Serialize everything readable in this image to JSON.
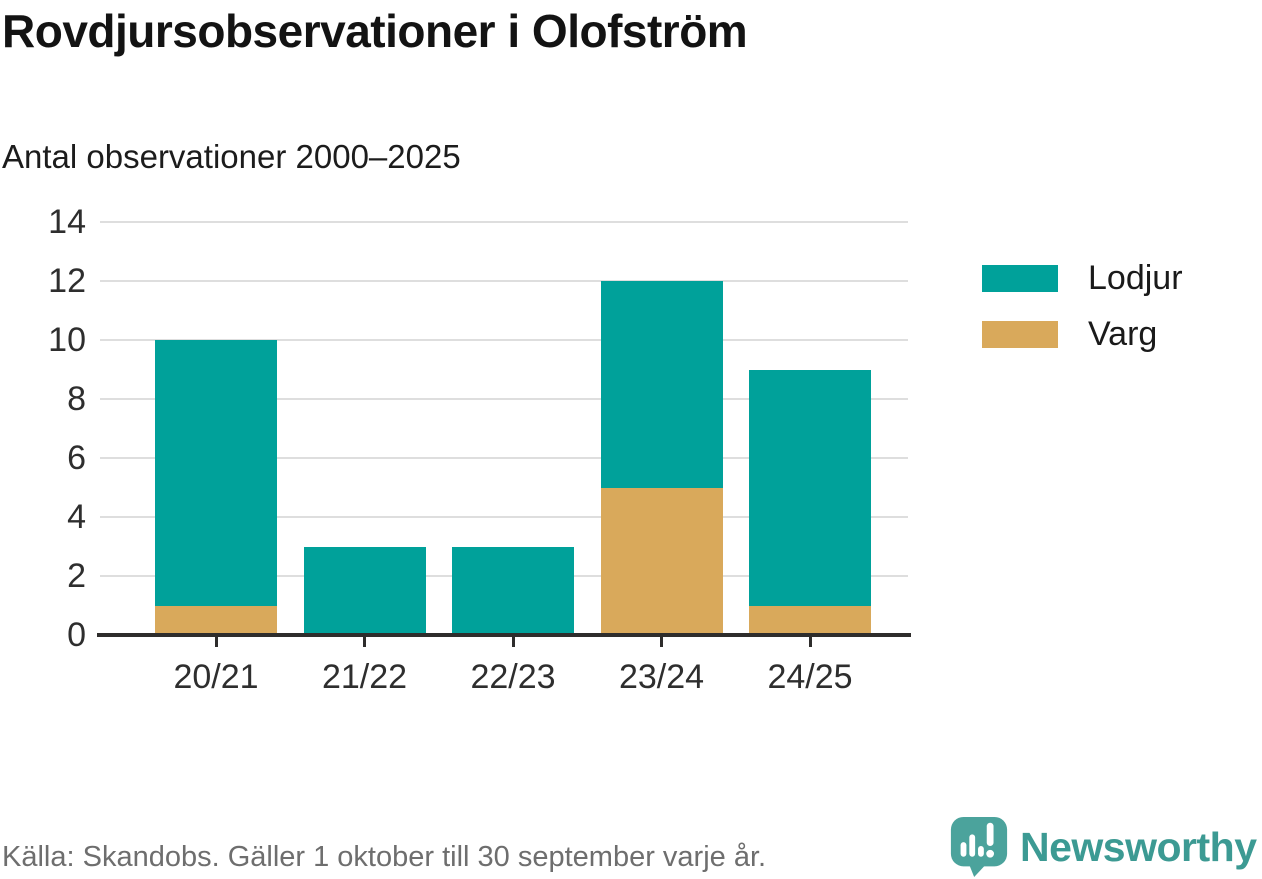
{
  "title": "Rovdjursobservationer i Olofström",
  "subtitle": "Antal observationer 2000–2025",
  "footer": {
    "source": "Källa: Skandobs. Gäller 1 oktober till 30 september varje år."
  },
  "branding": {
    "name": "Newsworthy",
    "logo_icon": "bar-chart-exclamation-speech-bubble",
    "logo_color": "#4ba39c",
    "wordmark_color": "#3c9a93"
  },
  "colors": {
    "lodjur": "#00a19a",
    "varg": "#d9a95b",
    "grid": "#dedede",
    "axis": "#2e2d2c",
    "tick_text": "#2e2e2e",
    "muted_text": "#6e6e6e"
  },
  "chart_data": {
    "type": "bar",
    "stacked": true,
    "title": "Rovdjursobservationer i Olofström",
    "subtitle": "Antal observationer 2000–2025",
    "xlabel": "",
    "ylabel": "",
    "categories": [
      "20/21",
      "21/22",
      "22/23",
      "23/24",
      "24/25"
    ],
    "series": [
      {
        "name": "Varg",
        "color_key": "varg",
        "values": [
          1,
          0,
          0,
          5,
          1
        ]
      },
      {
        "name": "Lodjur",
        "color_key": "lodjur",
        "values": [
          9,
          3,
          3,
          7,
          8
        ]
      }
    ],
    "totals": [
      10,
      3,
      3,
      12,
      9
    ],
    "y_ticks": [
      0,
      2,
      4,
      6,
      8,
      10,
      12,
      14
    ],
    "ylim": [
      0,
      14
    ],
    "grid": "horizontal",
    "legend_position": "right",
    "legend": [
      {
        "label": "Lodjur",
        "color_key": "lodjur"
      },
      {
        "label": "Varg",
        "color_key": "varg"
      }
    ]
  }
}
